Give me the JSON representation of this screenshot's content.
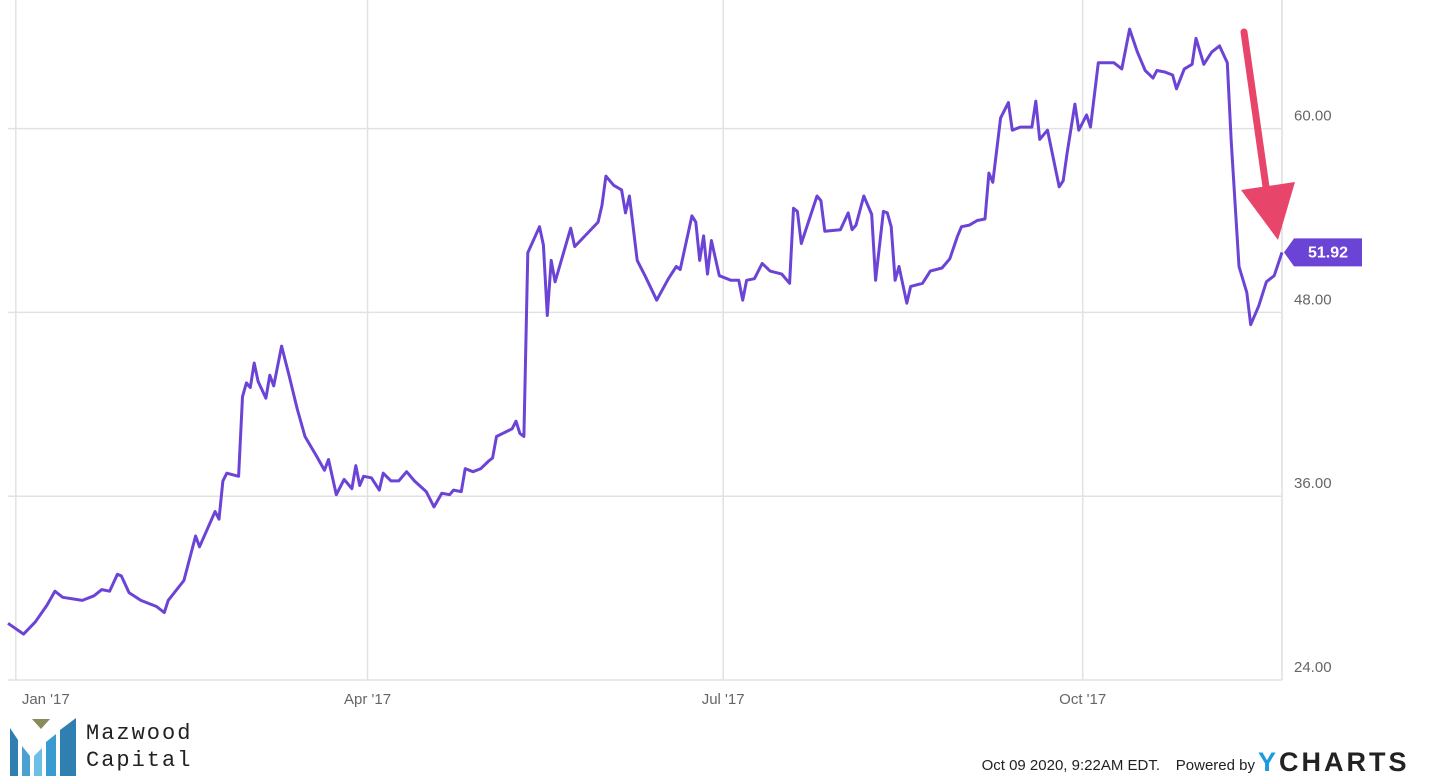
{
  "chart_data": {
    "type": "line",
    "x": [
      -2,
      2,
      5,
      8,
      10,
      12,
      17,
      20,
      22,
      24,
      26,
      27,
      29,
      32,
      36,
      38,
      39,
      43,
      46,
      47,
      51,
      52,
      53,
      54,
      57,
      58,
      59,
      60,
      61,
      62,
      64,
      65,
      66,
      68,
      70,
      72,
      74,
      77,
      79,
      80,
      82,
      84,
      86,
      87,
      88,
      89,
      91,
      93,
      94,
      96,
      98,
      100,
      102,
      105,
      107,
      109,
      111,
      112,
      114,
      115,
      117,
      119,
      121,
      122,
      123,
      127,
      128,
      129,
      130,
      131,
      134,
      135,
      136,
      137,
      138,
      142,
      143,
      149,
      150,
      151,
      153,
      155,
      156,
      157,
      159,
      161,
      164,
      167,
      169,
      170,
      173,
      174,
      175,
      176,
      177,
      178,
      180,
      183,
      185,
      186,
      187,
      189,
      191,
      193,
      196,
      198,
      199,
      200,
      201,
      205,
      206,
      207,
      211,
      213,
      214,
      215,
      217,
      219,
      220,
      222,
      223,
      224,
      225,
      226,
      228,
      229,
      232,
      234,
      237,
      239,
      241,
      242,
      244,
      246,
      248,
      249,
      250,
      252,
      254,
      255,
      257,
      260,
      261,
      262,
      264,
      267,
      268,
      269,
      271,
      272,
      274,
      275,
      277,
      281,
      283,
      285,
      287,
      289,
      291,
      292,
      294,
      296,
      297,
      299,
      301,
      302,
      304,
      306,
      308,
      310,
      311,
      313,
      315,
      316,
      318,
      320,
      322,
      324
    ],
    "series": [
      {
        "color": "#6b44d6",
        "values": [
          27.7,
          27.0,
          27.8,
          28.9,
          29.8,
          29.4,
          29.2,
          29.5,
          29.9,
          29.8,
          30.9,
          30.8,
          29.7,
          29.2,
          28.8,
          28.4,
          29.2,
          30.5,
          33.4,
          32.7,
          35.0,
          34.5,
          37.0,
          37.5,
          37.3,
          42.5,
          43.4,
          43.1,
          44.7,
          43.5,
          42.4,
          43.9,
          43.2,
          45.8,
          43.8,
          41.7,
          39.9,
          38.6,
          37.7,
          38.4,
          36.1,
          37.1,
          36.5,
          38.0,
          36.7,
          37.3,
          37.2,
          36.4,
          37.5,
          37.0,
          37.0,
          37.6,
          37.0,
          36.3,
          35.3,
          36.2,
          36.1,
          36.4,
          36.3,
          37.8,
          37.6,
          37.8,
          38.3,
          38.5,
          39.9,
          40.4,
          40.9,
          40.1,
          39.9,
          51.9,
          53.6,
          52.4,
          47.8,
          51.4,
          50.0,
          53.5,
          52.3,
          53.9,
          55.0,
          56.9,
          56.3,
          56.0,
          54.5,
          55.6,
          51.4,
          50.4,
          48.8,
          50.2,
          51.0,
          50.8,
          54.3,
          53.9,
          51.4,
          53.0,
          50.5,
          52.7,
          50.4,
          50.1,
          50.1,
          48.8,
          50.1,
          50.2,
          51.2,
          50.7,
          50.5,
          49.9,
          54.8,
          54.6,
          52.5,
          55.6,
          55.3,
          53.3,
          53.4,
          54.5,
          53.4,
          53.7,
          55.6,
          54.4,
          50.1,
          54.6,
          54.5,
          53.6,
          50.1,
          51.0,
          48.6,
          49.7,
          49.9,
          50.7,
          50.9,
          51.5,
          53.0,
          53.6,
          53.7,
          54.0,
          54.1,
          57.1,
          56.5,
          60.7,
          61.7,
          59.9,
          60.1,
          60.1,
          61.8,
          59.3,
          59.9,
          56.2,
          56.6,
          58.4,
          61.6,
          59.9,
          60.9,
          60.1,
          64.3,
          64.3,
          63.9,
          66.5,
          65.0,
          63.8,
          63.3,
          63.8,
          63.7,
          63.5,
          62.6,
          63.9,
          64.2,
          65.9,
          64.2,
          65.0,
          65.4,
          64.3,
          59.2,
          51.0,
          49.3,
          47.2,
          48.4,
          50.0,
          50.4,
          51.92
        ]
      }
    ],
    "xlim": [
      -2,
      324
    ],
    "xticks": [
      {
        "value": 0,
        "label": "Jan '17"
      },
      {
        "value": 90,
        "label": "Apr '17"
      },
      {
        "value": 181,
        "label": "Jul '17"
      },
      {
        "value": 273,
        "label": "Oct '17"
      }
    ],
    "ylim": [
      24,
      68.4
    ],
    "yticks": [
      {
        "value": 24,
        "label": "24.00"
      },
      {
        "value": 36,
        "label": "36.00"
      },
      {
        "value": 48,
        "label": "48.00"
      },
      {
        "value": 60,
        "label": "60.00"
      }
    ],
    "grid": true
  },
  "logo": {
    "line1": "Mazwood",
    "line2": "Capital"
  },
  "footer": {
    "timestamp": "Oct 09 2020, 9:22AM EDT.",
    "powered_by": "Powered by",
    "brand": "YCHARTS"
  }
}
